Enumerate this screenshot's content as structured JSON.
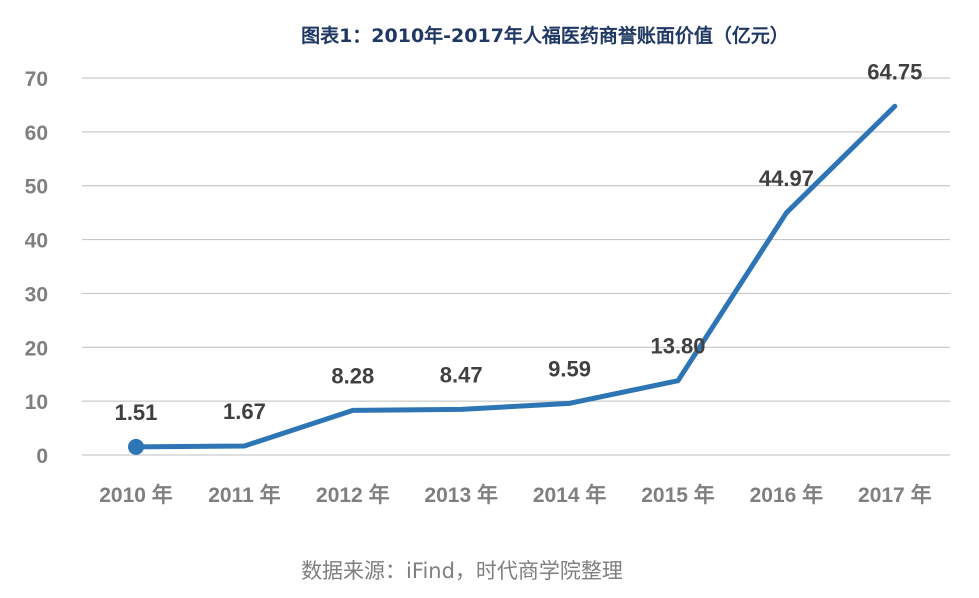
{
  "chart_data": {
    "type": "line",
    "title": "图表1：2010年-2017年人福医药商誉账面价值（亿元）",
    "categories": [
      "2010 年",
      "2011 年",
      "2012 年",
      "2013 年",
      "2014 年",
      "2015 年",
      "2016 年",
      "2017 年"
    ],
    "series": [
      {
        "values": [
          1.51,
          1.67,
          8.28,
          8.47,
          9.59,
          13.8,
          44.97,
          64.75
        ],
        "labels": [
          "1.51",
          "1.67",
          "8.28",
          "8.47",
          "9.59",
          "13.80",
          "44.97",
          "64.75"
        ]
      }
    ],
    "ylim": [
      0,
      70
    ],
    "yticks": [
      0,
      10,
      20,
      30,
      40,
      50,
      60,
      70
    ],
    "grid": true,
    "legend": "none",
    "source": "数据来源：iFind，时代商学院整理"
  },
  "colors": {
    "line": "#2e75b6",
    "title": "#1f3864",
    "grid": "#bfbfbf",
    "tick": "#7f7f7f",
    "label": "#404040"
  }
}
